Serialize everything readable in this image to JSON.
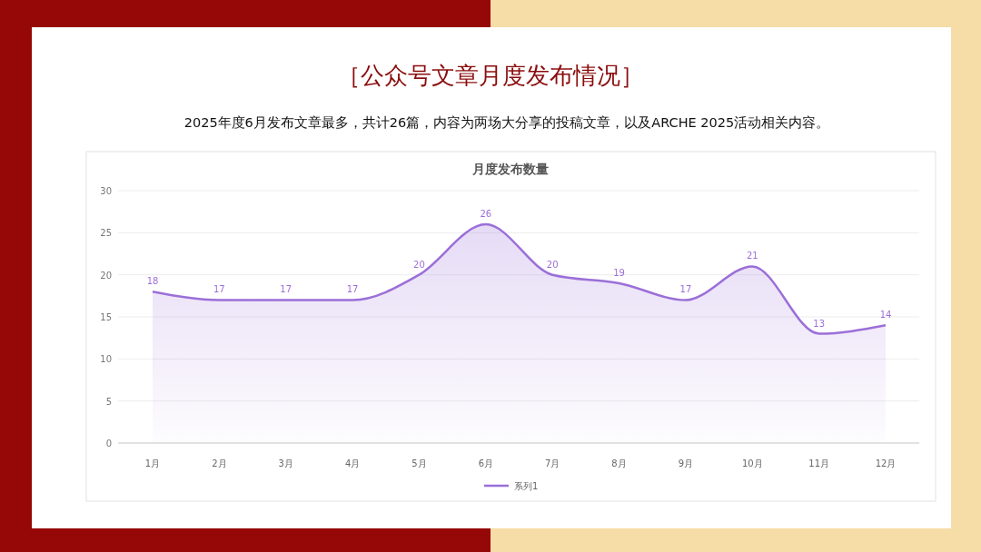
{
  "chart_data": {
    "type": "area",
    "title": "月度发布数量",
    "categories": [
      "1月",
      "2月",
      "3月",
      "4月",
      "5月",
      "6月",
      "7月",
      "8月",
      "9月",
      "10月",
      "11月",
      "12月"
    ],
    "series": [
      {
        "name": "系列1",
        "color": "#9b6fd8",
        "values": [
          18,
          17,
          17,
          17,
          20,
          26,
          20,
          19,
          17,
          21,
          13,
          14
        ]
      }
    ],
    "ylim": [
      0,
      30
    ],
    "yticks": [
      0,
      5,
      10,
      15,
      20,
      25,
      30
    ],
    "grid": "y",
    "legend": "bottom",
    "data_labels": true,
    "marker": "none",
    "annotations": [
      "［公众号文章月度发布情况］",
      "2025年度6月发布文章最多，共计26篇，内容为两场大分享的投稿文章，以及ARCHE 2025活动相关内容。"
    ]
  }
}
